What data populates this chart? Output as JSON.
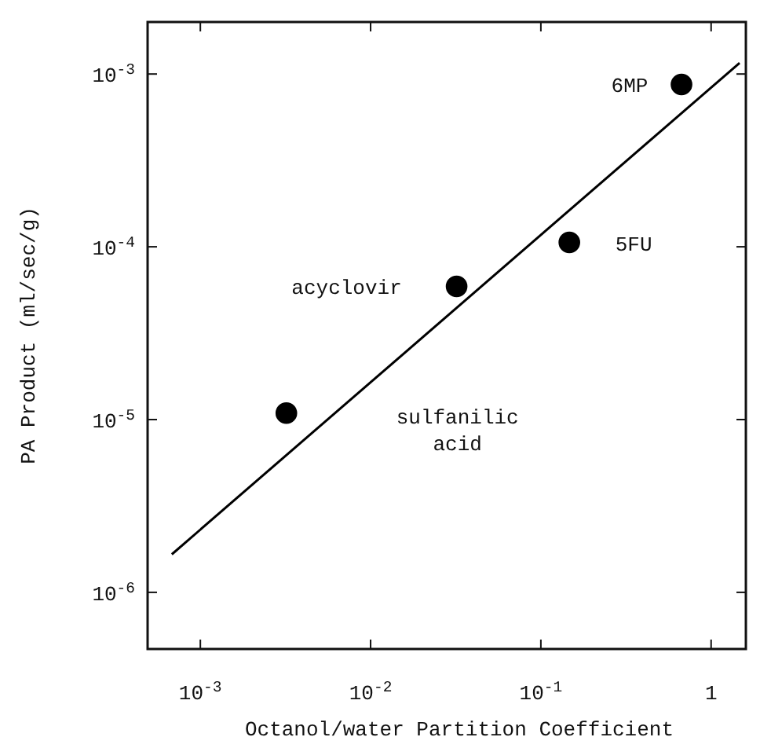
{
  "chart_data": {
    "type": "scatter",
    "xlabel": "Octanol/water Partition Coefficient",
    "ylabel": "PA Product (ml/sec/g)",
    "log": "xy",
    "grid": false,
    "xlim": [
      0.00049,
      1.6
    ],
    "ylim": [
      4.7e-07,
      0.002
    ],
    "xticks": [
      {
        "value": 0.001,
        "label": "10$^{-3}$"
      },
      {
        "value": 0.01,
        "label": "10$^{-2}$"
      },
      {
        "value": 0.1,
        "label": "10$^{-1}$"
      },
      1
    ],
    "yticks": [
      {
        "value": 1e-06,
        "label": "10$^{-6}$"
      },
      {
        "value": 1e-05,
        "label": "10$^{-5}$"
      },
      {
        "value": 0.0001,
        "label": "10$^{-4}$"
      },
      {
        "value": 0.001,
        "label": "10$^{-3}$"
      }
    ],
    "series": [
      {
        "color": "#000000",
        "marker": "circle",
        "x": [
          0.0032,
          0.032,
          0.147,
          0.67
        ],
        "values": [
          1.09e-05,
          5.9e-05,
          0.000106,
          0.00087
        ]
      },
      {
        "type": "line",
        "color": "#000000",
        "line_style": "solid",
        "marker": "none",
        "x": [
          0.00068,
          1.47
        ],
        "values": [
          1.66e-06,
          0.00116
        ]
      }
    ],
    "annotations": [
      "sulfanilic\nacid",
      "acyclovir",
      "5FU",
      "6MP"
    ]
  }
}
